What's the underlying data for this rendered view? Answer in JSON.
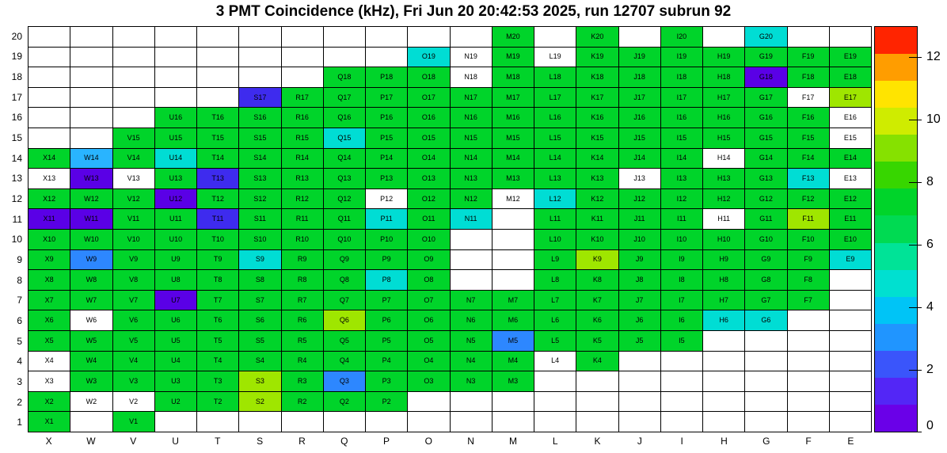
{
  "title": "3 PMT Coincidence (kHz), Fri Jun 20 20:42:53 2025, run 12707 subrun 92",
  "chart_data": {
    "type": "heatmap",
    "title": "3 PMT Coincidence (kHz), Fri Jun 20 20:42:53 2025, run 12707 subrun 92",
    "units": "kHz",
    "columns": [
      "X",
      "W",
      "V",
      "U",
      "T",
      "S",
      "R",
      "Q",
      "P",
      "O",
      "N",
      "M",
      "L",
      "K",
      "J",
      "I",
      "H",
      "G",
      "F",
      "E"
    ],
    "rows": [
      "20",
      "19",
      "18",
      "17",
      "16",
      "15",
      "14",
      "13",
      "12",
      "11",
      "10",
      "9",
      "8",
      "7",
      "6",
      "5",
      "4",
      "3",
      "2",
      "1"
    ],
    "palette": {
      "g": "#00d42a",
      "c": "#00ddd4",
      "lb": "#29b4ff",
      "b": "#2d87ff",
      "p": "#5a00e6",
      "i": "#3e2bee",
      "y": "#9fe600",
      "w": "#ffffff"
    },
    "palette_value_estimates_khz": {
      "g": 7,
      "c": 4.5,
      "lb": 3.5,
      "b": 2.5,
      "p": 0.5,
      "i": 1.5,
      "y": 9.5,
      "w": null
    },
    "cells": [
      [
        "",
        "",
        "",
        "",
        "",
        "",
        "",
        "",
        "",
        "",
        "",
        "M20:g",
        "",
        "K20:g",
        "",
        "I20:g",
        "",
        "G20:c",
        "",
        ""
      ],
      [
        "",
        "",
        "",
        "",
        "",
        "",
        "",
        "",
        "",
        "O19:c",
        "N19:w",
        "M19:g",
        "L19:w",
        "K19:g",
        "J19:g",
        "I19:g",
        "H19:g",
        "G19:g",
        "F19:g",
        "E19:g"
      ],
      [
        "",
        "",
        "",
        "",
        "",
        "",
        "",
        "Q18:g",
        "P18:g",
        "O18:g",
        "N18:w",
        "M18:g",
        "L18:g",
        "K18:g",
        "J18:g",
        "I18:g",
        "H18:g",
        "G18:p",
        "F18:g",
        "E18:g"
      ],
      [
        "",
        "",
        "",
        "",
        "",
        "S17:i",
        "R17:g",
        "Q17:g",
        "P17:g",
        "O17:g",
        "N17:g",
        "M17:g",
        "L17:g",
        "K17:g",
        "J17:g",
        "I17:g",
        "H17:g",
        "G17:g",
        "F17:w",
        "E17:y"
      ],
      [
        "",
        "",
        "",
        "U16:g",
        "T16:g",
        "S16:g",
        "R16:g",
        "Q16:g",
        "P16:g",
        "O16:g",
        "N16:g",
        "M16:g",
        "L16:g",
        "K16:g",
        "J16:g",
        "I16:g",
        "H16:g",
        "G16:g",
        "F16:g",
        "E16:w"
      ],
      [
        "",
        "",
        "V15:g",
        "U15:g",
        "T15:g",
        "S15:g",
        "R15:g",
        "Q15:c",
        "P15:g",
        "O15:g",
        "N15:g",
        "M15:g",
        "L15:g",
        "K15:g",
        "J15:g",
        "I15:g",
        "H15:g",
        "G15:g",
        "F15:g",
        "E15:w"
      ],
      [
        "X14:g",
        "W14:lb",
        "V14:g",
        "U14:c",
        "T14:g",
        "S14:g",
        "R14:g",
        "Q14:g",
        "P14:g",
        "O14:g",
        "N14:g",
        "M14:g",
        "L14:g",
        "K14:g",
        "J14:g",
        "I14:g",
        "H14:w",
        "G14:g",
        "F14:g",
        "E14:g"
      ],
      [
        "X13:w",
        "W13:p",
        "V13:w",
        "U13:g",
        "T13:i",
        "S13:g",
        "R13:g",
        "Q13:g",
        "P13:g",
        "O13:g",
        "N13:g",
        "M13:g",
        "L13:g",
        "K13:g",
        "J13:w",
        "I13:g",
        "H13:g",
        "G13:g",
        "F13:c",
        "E13:w"
      ],
      [
        "X12:g",
        "W12:g",
        "V12:g",
        "U12:p",
        "T12:g",
        "S12:g",
        "R12:g",
        "Q12:g",
        "P12:w",
        "O12:g",
        "N12:g",
        "M12:w",
        "L12:c",
        "K12:g",
        "J12:g",
        "I12:g",
        "H12:g",
        "G12:g",
        "F12:g",
        "E12:g"
      ],
      [
        "X11:p",
        "W11:p",
        "V11:g",
        "U11:g",
        "T11:i",
        "S11:g",
        "R11:g",
        "Q11:g",
        "P11:c",
        "O11:g",
        "N11:c",
        "",
        "L11:g",
        "K11:g",
        "J11:g",
        "I11:g",
        "H11:w",
        "G11:g",
        "F11:y",
        "E11:g"
      ],
      [
        "X10:g",
        "W10:g",
        "V10:g",
        "U10:g",
        "T10:g",
        "S10:g",
        "R10:g",
        "Q10:g",
        "P10:g",
        "O10:g",
        "",
        "",
        "L10:g",
        "K10:g",
        "J10:g",
        "I10:g",
        "H10:g",
        "G10:g",
        "F10:g",
        "E10:g"
      ],
      [
        "X9:g",
        "W9:b",
        "V9:g",
        "U9:g",
        "T9:g",
        "S9:c",
        "R9:g",
        "Q9:g",
        "P9:g",
        "O9:g",
        "",
        "",
        "L9:g",
        "K9:y",
        "J9:g",
        "I9:g",
        "H9:g",
        "G9:g",
        "F9:g",
        "E9:c"
      ],
      [
        "X8:g",
        "W8:g",
        "V8:g",
        "U8:g",
        "T8:g",
        "S8:g",
        "R8:g",
        "Q8:g",
        "P8:c",
        "O8:g",
        "",
        "",
        "L8:g",
        "K8:g",
        "J8:g",
        "I8:g",
        "H8:g",
        "G8:g",
        "F8:g",
        ""
      ],
      [
        "X7:g",
        "W7:g",
        "V7:g",
        "U7:p",
        "T7:g",
        "S7:g",
        "R7:g",
        "Q7:g",
        "P7:g",
        "O7:g",
        "N7:g",
        "M7:g",
        "L7:g",
        "K7:g",
        "J7:g",
        "I7:g",
        "H7:g",
        "G7:g",
        "F7:g",
        ""
      ],
      [
        "X6:g",
        "W6:w",
        "V6:g",
        "U6:g",
        "T6:g",
        "S6:g",
        "R6:g",
        "Q6:y",
        "P6:g",
        "O6:g",
        "N6:g",
        "M6:g",
        "L6:g",
        "K6:g",
        "J6:g",
        "I6:g",
        "H6:c",
        "G6:c",
        "",
        ""
      ],
      [
        "X5:g",
        "W5:g",
        "V5:g",
        "U5:g",
        "T5:g",
        "S5:g",
        "R5:g",
        "Q5:g",
        "P5:g",
        "O5:g",
        "N5:g",
        "M5:b",
        "L5:g",
        "K5:g",
        "J5:g",
        "I5:g",
        "",
        "",
        "",
        ""
      ],
      [
        "X4:w",
        "W4:g",
        "V4:g",
        "U4:g",
        "T4:g",
        "S4:g",
        "R4:g",
        "Q4:g",
        "P4:g",
        "O4:g",
        "N4:g",
        "M4:g",
        "L4:w",
        "K4:g",
        "",
        "",
        "",
        "",
        "",
        ""
      ],
      [
        "X3:w",
        "W3:g",
        "V3:g",
        "U3:g",
        "T3:g",
        "S3:y",
        "R3:g",
        "Q3:b",
        "P3:g",
        "O3:g",
        "N3:g",
        "M3:g",
        "",
        "",
        "",
        "",
        "",
        "",
        "",
        ""
      ],
      [
        "X2:g",
        "W2:w",
        "V2:w",
        "U2:g",
        "T2:g",
        "S2:y",
        "R2:g",
        "Q2:g",
        "P2:g",
        "",
        "",
        "",
        "",
        "",
        "",
        "",
        "",
        "",
        "",
        ""
      ],
      [
        "X1:g",
        "",
        "V1:g",
        "",
        "",
        "",
        "",
        "",
        "",
        "",
        "",
        "",
        "",
        "",
        "",
        "",
        "",
        "",
        "",
        ""
      ]
    ],
    "colorbar": {
      "min": 0,
      "max": 13,
      "ticks": [
        "0",
        "2",
        "4",
        "6",
        "8",
        "10",
        "12"
      ],
      "bands_bottom_to_top": [
        "#6a00e8",
        "#5326f6",
        "#3a55fb",
        "#2095ff",
        "#00c4f6",
        "#00e0d0",
        "#00e397",
        "#00da52",
        "#00d42a",
        "#37d600",
        "#86e100",
        "#cfec00",
        "#ffe400",
        "#ff9d00",
        "#ff2400"
      ]
    }
  }
}
